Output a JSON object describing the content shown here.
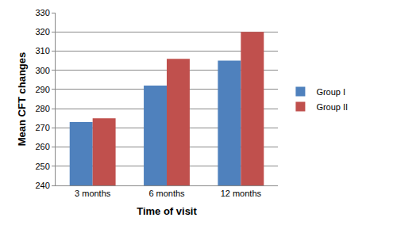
{
  "chart_data": {
    "type": "bar",
    "x_label": "Time of visit",
    "y_label": "Mean CFT changes",
    "categories": [
      "3 months",
      "6 months",
      "12 months"
    ],
    "series": [
      {
        "name": "Group I",
        "color": "#4f81bd",
        "values": [
          273,
          292,
          305
        ]
      },
      {
        "name": "Group II",
        "color": "#c0504d",
        "values": [
          275,
          306,
          320
        ]
      }
    ],
    "ylim": [
      240,
      330
    ],
    "yticks": [
      240,
      250,
      260,
      270,
      280,
      290,
      300,
      310,
      320,
      330
    ],
    "grid": true,
    "legend": "right"
  }
}
